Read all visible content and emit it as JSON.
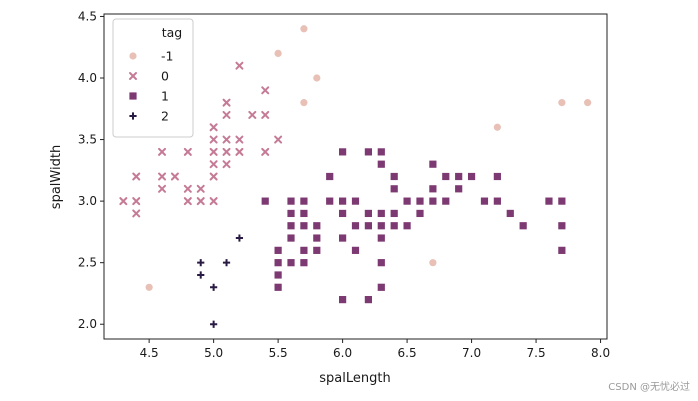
{
  "chart_data": {
    "type": "scatter",
    "xlabel": "spalLength",
    "ylabel": "spalWidth",
    "xlim": [
      4.15,
      8.05
    ],
    "ylim": [
      1.88,
      4.52
    ],
    "xticks": [
      "4.5",
      "5.0",
      "5.5",
      "6.0",
      "6.5",
      "7.0",
      "7.5",
      "8.0"
    ],
    "yticks": [
      "2.0",
      "2.5",
      "3.0",
      "3.5",
      "4.0",
      "4.5"
    ],
    "grid": false,
    "legend": {
      "title": "tag",
      "position": "top-left"
    },
    "series": [
      {
        "name": "-1",
        "marker": "circle",
        "color": "#e8c0b6",
        "points": [
          [
            4.5,
            2.3
          ],
          [
            5.5,
            4.2
          ],
          [
            5.7,
            4.4
          ],
          [
            5.8,
            4.0
          ],
          [
            5.7,
            3.8
          ],
          [
            6.7,
            2.5
          ],
          [
            7.2,
            3.6
          ],
          [
            7.7,
            3.8
          ],
          [
            7.9,
            3.8
          ]
        ]
      },
      {
        "name": "0",
        "marker": "x",
        "color": "#c57b96",
        "points": [
          [
            4.3,
            3.0
          ],
          [
            4.4,
            3.0
          ],
          [
            4.4,
            2.9
          ],
          [
            4.4,
            3.2
          ],
          [
            4.6,
            3.1
          ],
          [
            4.6,
            3.2
          ],
          [
            4.6,
            3.4
          ],
          [
            4.6,
            3.6
          ],
          [
            4.7,
            3.2
          ],
          [
            4.8,
            3.0
          ],
          [
            4.8,
            3.1
          ],
          [
            4.8,
            3.4
          ],
          [
            4.9,
            3.0
          ],
          [
            4.9,
            3.1
          ],
          [
            5.0,
            3.0
          ],
          [
            5.0,
            3.2
          ],
          [
            5.0,
            3.3
          ],
          [
            5.0,
            3.4
          ],
          [
            5.0,
            3.5
          ],
          [
            5.0,
            3.6
          ],
          [
            5.1,
            3.3
          ],
          [
            5.1,
            3.4
          ],
          [
            5.1,
            3.5
          ],
          [
            5.1,
            3.7
          ],
          [
            5.1,
            3.8
          ],
          [
            5.2,
            3.4
          ],
          [
            5.2,
            3.5
          ],
          [
            5.2,
            4.1
          ],
          [
            5.3,
            3.7
          ],
          [
            5.4,
            3.4
          ],
          [
            5.4,
            3.7
          ],
          [
            5.4,
            3.9
          ],
          [
            5.5,
            3.5
          ]
        ]
      },
      {
        "name": "1",
        "marker": "square",
        "color": "#7d3a72",
        "points": [
          [
            5.4,
            3.0
          ],
          [
            5.5,
            2.6
          ],
          [
            5.5,
            2.5
          ],
          [
            5.5,
            2.4
          ],
          [
            5.5,
            2.3
          ],
          [
            5.6,
            3.0
          ],
          [
            5.6,
            2.9
          ],
          [
            5.6,
            2.8
          ],
          [
            5.6,
            2.7
          ],
          [
            5.6,
            2.5
          ],
          [
            5.7,
            3.0
          ],
          [
            5.7,
            2.9
          ],
          [
            5.7,
            2.8
          ],
          [
            5.7,
            2.6
          ],
          [
            5.7,
            2.5
          ],
          [
            5.8,
            2.8
          ],
          [
            5.8,
            2.7
          ],
          [
            5.8,
            2.6
          ],
          [
            5.9,
            3.2
          ],
          [
            5.9,
            3.0
          ],
          [
            6.0,
            3.4
          ],
          [
            6.0,
            3.0
          ],
          [
            6.0,
            2.9
          ],
          [
            6.0,
            2.7
          ],
          [
            6.0,
            2.2
          ],
          [
            6.1,
            3.0
          ],
          [
            6.1,
            2.8
          ],
          [
            6.1,
            2.6
          ],
          [
            6.2,
            3.4
          ],
          [
            6.2,
            2.9
          ],
          [
            6.2,
            2.8
          ],
          [
            6.2,
            2.2
          ],
          [
            6.3,
            3.4
          ],
          [
            6.3,
            3.3
          ],
          [
            6.3,
            2.9
          ],
          [
            6.3,
            2.8
          ],
          [
            6.3,
            2.7
          ],
          [
            6.3,
            2.5
          ],
          [
            6.3,
            2.3
          ],
          [
            6.4,
            3.2
          ],
          [
            6.4,
            3.1
          ],
          [
            6.4,
            2.9
          ],
          [
            6.4,
            2.8
          ],
          [
            6.5,
            3.0
          ],
          [
            6.5,
            2.8
          ],
          [
            6.6,
            3.0
          ],
          [
            6.6,
            2.9
          ],
          [
            6.7,
            3.3
          ],
          [
            6.7,
            3.1
          ],
          [
            6.7,
            3.0
          ],
          [
            6.8,
            3.2
          ],
          [
            6.8,
            3.0
          ],
          [
            6.9,
            3.2
          ],
          [
            6.9,
            3.1
          ],
          [
            7.0,
            3.2
          ],
          [
            7.1,
            3.0
          ],
          [
            7.2,
            3.2
          ],
          [
            7.2,
            3.0
          ],
          [
            7.3,
            2.9
          ],
          [
            7.4,
            2.8
          ],
          [
            7.6,
            3.0
          ],
          [
            7.7,
            3.0
          ],
          [
            7.7,
            2.8
          ],
          [
            7.7,
            2.6
          ]
        ]
      },
      {
        "name": "2",
        "marker": "plus",
        "color": "#2a1b44",
        "points": [
          [
            4.9,
            2.5
          ],
          [
            4.9,
            2.4
          ],
          [
            5.0,
            2.3
          ],
          [
            5.0,
            2.0
          ],
          [
            5.1,
            2.5
          ],
          [
            5.2,
            2.7
          ]
        ]
      }
    ]
  },
  "watermark": "CSDN @无忧必过"
}
